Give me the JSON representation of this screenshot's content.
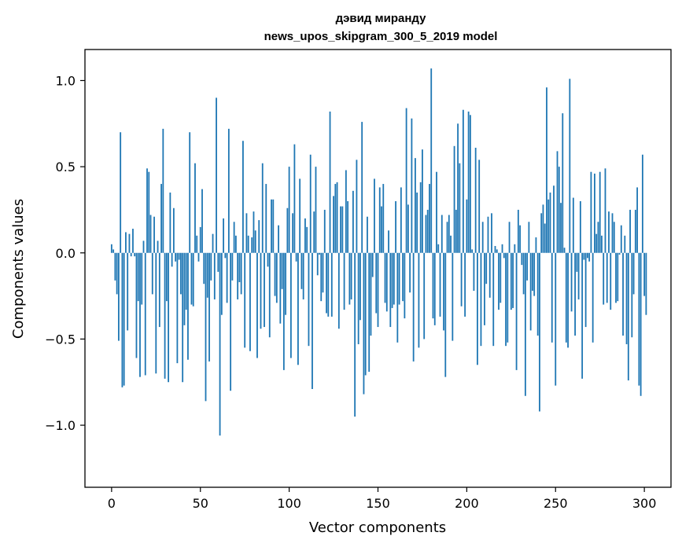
{
  "chart_data": {
    "type": "bar",
    "title": "дэвид миранду",
    "subtitle": "news_upos_skipgram_300_5_2019 model",
    "xlabel": "Vector components",
    "ylabel": "Components values",
    "xlim": [
      -15,
      315
    ],
    "ylim": [
      -1.36,
      1.18
    ],
    "xticks": [
      0,
      50,
      100,
      150,
      200,
      250,
      300
    ],
    "xtick_labels": [
      "0",
      "50",
      "100",
      "150",
      "200",
      "250",
      "300"
    ],
    "yticks": [
      -1.0,
      -0.5,
      0.0,
      0.5,
      1.0
    ],
    "ytick_labels": [
      "−1.0",
      "−0.5",
      "0.0",
      "0.5",
      "1.0"
    ],
    "grid": false,
    "bar_color": "#1f77b4",
    "values": [
      0.05,
      0.02,
      -0.16,
      -0.24,
      -0.51,
      0.7,
      -0.78,
      -0.77,
      0.12,
      -0.45,
      0.11,
      -0.02,
      0.14,
      -0.02,
      -0.61,
      -0.28,
      -0.72,
      -0.3,
      0.07,
      -0.71,
      0.49,
      0.47,
      0.22,
      -0.24,
      0.21,
      -0.7,
      0.07,
      -0.43,
      0.4,
      0.72,
      -0.73,
      -0.28,
      -0.75,
      0.35,
      -0.08,
      0.26,
      -0.05,
      -0.64,
      -0.04,
      -0.24,
      -0.75,
      -0.42,
      -0.33,
      -0.62,
      0.7,
      -0.3,
      -0.31,
      0.52,
      0.1,
      -0.05,
      0.15,
      0.37,
      -0.18,
      -0.86,
      -0.26,
      -0.63,
      -0.16,
      0.11,
      -0.27,
      0.9,
      -0.11,
      -1.06,
      -0.36,
      0.2,
      -0.03,
      -0.29,
      0.72,
      -0.8,
      -0.16,
      0.18,
      0.1,
      -0.27,
      -0.17,
      -0.24,
      0.65,
      -0.55,
      0.23,
      0.1,
      -0.57,
      0.09,
      0.24,
      0.13,
      -0.61,
      0.19,
      -0.44,
      0.52,
      -0.43,
      0.4,
      -0.08,
      -0.49,
      0.31,
      0.31,
      -0.25,
      -0.29,
      0.16,
      -0.41,
      -0.21,
      -0.68,
      -0.36,
      0.26,
      0.5,
      -0.61,
      0.23,
      0.63,
      -0.05,
      -0.65,
      0.43,
      -0.21,
      -0.27,
      0.2,
      0.15,
      -0.54,
      0.57,
      -0.79,
      0.24,
      0.5,
      -0.13,
      -0.01,
      -0.28,
      -0.23,
      0.25,
      -0.35,
      -0.37,
      0.82,
      -0.37,
      0.33,
      0.4,
      0.41,
      -0.44,
      0.27,
      0.27,
      -0.33,
      0.48,
      0.3,
      -0.3,
      -0.27,
      0.36,
      -0.95,
      0.54,
      -0.53,
      -0.39,
      0.76,
      -0.82,
      -0.71,
      0.21,
      -0.69,
      -0.48,
      -0.14,
      0.43,
      -0.35,
      -0.43,
      0.38,
      0.27,
      0.4,
      -0.29,
      -0.34,
      0.13,
      -0.43,
      -0.32,
      -0.3,
      0.3,
      -0.52,
      -0.3,
      0.38,
      -0.28,
      -0.38,
      0.84,
      0.28,
      -0.23,
      0.78,
      -0.63,
      0.55,
      0.35,
      -0.55,
      0.41,
      0.6,
      -0.5,
      0.22,
      0.25,
      0.4,
      1.07,
      -0.38,
      -0.42,
      0.47,
      0.05,
      -0.37,
      0.22,
      -0.45,
      -0.72,
      0.18,
      0.22,
      0.1,
      -0.51,
      0.62,
      0.25,
      0.75,
      0.52,
      -0.31,
      0.83,
      -0.37,
      0.31,
      0.82,
      0.8,
      0.02,
      -0.22,
      0.61,
      -0.65,
      0.54,
      -0.54,
      0.18,
      -0.42,
      -0.18,
      0.21,
      -0.26,
      0.23,
      -0.54,
      0.04,
      0.02,
      -0.33,
      -0.29,
      0.05,
      -0.03,
      -0.54,
      -0.52,
      0.18,
      -0.33,
      -0.32,
      0.05,
      -0.68,
      0.25,
      0.16,
      -0.07,
      -0.24,
      -0.83,
      -0.16,
      0.18,
      -0.45,
      -0.22,
      -0.25,
      0.09,
      -0.48,
      -0.92,
      0.23,
      0.28,
      0.17,
      0.96,
      0.31,
      0.35,
      -0.52,
      0.39,
      -0.77,
      0.59,
      0.5,
      0.29,
      0.81,
      0.03,
      -0.52,
      -0.55,
      1.01,
      -0.34,
      0.32,
      -0.48,
      -0.11,
      -0.27,
      0.3,
      -0.73,
      -0.04,
      -0.43,
      -0.03,
      -0.05,
      0.47,
      -0.52,
      0.46,
      0.11,
      0.18,
      0.47,
      0.1,
      -0.3,
      0.49,
      -0.29,
      0.24,
      -0.33,
      0.23,
      0.18,
      -0.29,
      -0.28,
      -0.01,
      0.16,
      -0.48,
      0.1,
      -0.53,
      -0.74,
      0.25,
      -0.49,
      -0.24,
      0.25,
      0.38,
      -0.77,
      -0.83,
      0.57,
      -0.25,
      -0.36
    ]
  }
}
